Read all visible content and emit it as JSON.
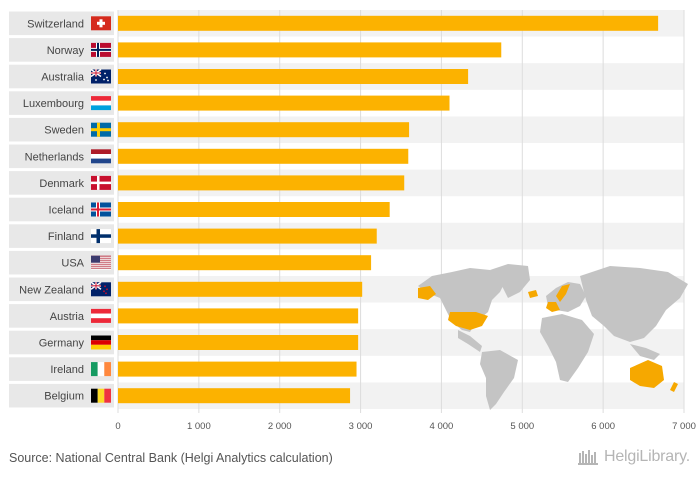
{
  "chart_data": {
    "type": "bar",
    "orientation": "horizontal",
    "categories": [
      "Switzerland",
      "Norway",
      "Australia",
      "Luxembourg",
      "Sweden",
      "Netherlands",
      "Denmark",
      "Iceland",
      "Finland",
      "USA",
      "New Zealand",
      "Austria",
      "Germany",
      "Ireland",
      "Belgium"
    ],
    "values": [
      6680,
      4740,
      4330,
      4100,
      3600,
      3590,
      3540,
      3360,
      3200,
      3130,
      3020,
      2970,
      2970,
      2950,
      2870
    ],
    "xlim": [
      0,
      7000
    ],
    "xticks": [
      0,
      1000,
      2000,
      3000,
      4000,
      5000,
      6000,
      7000
    ],
    "xtick_labels": [
      "0",
      "1 000",
      "2 000",
      "3 000",
      "4 000",
      "5 000",
      "6 000",
      "7 000"
    ],
    "grid": true,
    "title": "",
    "xlabel": "",
    "ylabel": ""
  },
  "colors": {
    "bar": "#fcb200",
    "label_bg": "#e8e8e8",
    "row_alt": "#f2f2f2",
    "map_land": "#c4c4c4",
    "map_highlight": "#f6a800"
  },
  "flag_icons": [
    "switzerland-flag-icon",
    "norway-flag-icon",
    "australia-flag-icon",
    "luxembourg-flag-icon",
    "sweden-flag-icon",
    "netherlands-flag-icon",
    "denmark-flag-icon",
    "iceland-flag-icon",
    "finland-flag-icon",
    "usa-flag-icon",
    "new-zealand-flag-icon",
    "austria-flag-icon",
    "germany-flag-icon",
    "ireland-flag-icon",
    "belgium-flag-icon"
  ],
  "footer": {
    "source": "Source: National Central Bank (Helgi Analytics calculation)",
    "logo": "HelgiLibrary."
  }
}
